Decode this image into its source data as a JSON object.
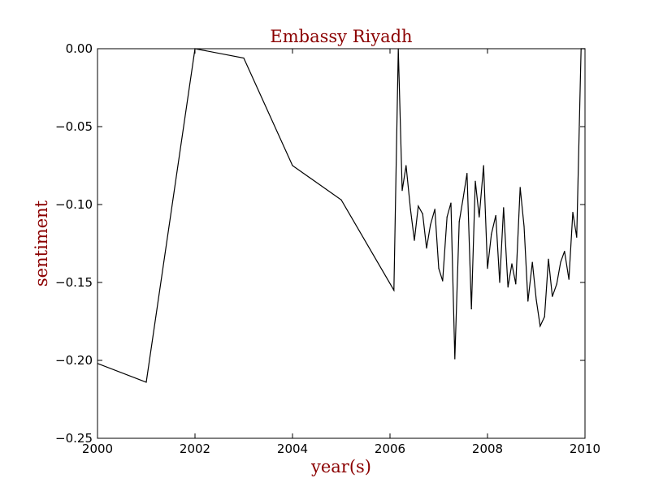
{
  "chart_data": {
    "type": "line",
    "title": "Embassy Riyadh",
    "xlabel": "year(s)",
    "ylabel": "sentiment",
    "xlim": [
      2000,
      2010
    ],
    "ylim": [
      -0.25,
      0.0
    ],
    "grid": false,
    "xticks": [
      2000,
      2002,
      2004,
      2006,
      2008,
      2010
    ],
    "xtick_labels": [
      "2000",
      "2002",
      "2004",
      "2006",
      "2008",
      "2010"
    ],
    "yticks": [
      0.0,
      -0.05,
      -0.1,
      -0.15,
      -0.2,
      -0.25
    ],
    "ytick_labels": [
      "0.00",
      "−0.05",
      "−0.10",
      "−0.15",
      "−0.20",
      "−0.25"
    ],
    "series": [
      {
        "color": "#000000",
        "x": [
          2000.0,
          2001.0,
          2002.0,
          2003.0,
          2004.0,
          2005.0,
          2006.08,
          2006.17,
          2006.25,
          2006.33,
          2006.42,
          2006.5,
          2006.58,
          2006.67,
          2006.75,
          2006.83,
          2006.92,
          2007.0,
          2007.08,
          2007.17,
          2007.25,
          2007.33,
          2007.42,
          2007.5,
          2007.58,
          2007.67,
          2007.75,
          2007.83,
          2007.92,
          2008.0,
          2008.08,
          2008.17,
          2008.25,
          2008.33,
          2008.42,
          2008.5,
          2008.58,
          2008.67,
          2008.75,
          2008.83,
          2008.92,
          2009.0,
          2009.08,
          2009.17,
          2009.25,
          2009.33,
          2009.42,
          2009.5,
          2009.58,
          2009.67,
          2009.75,
          2009.83,
          2009.92,
          2010.0
        ],
        "y": [
          -0.202,
          -0.214,
          0.0,
          -0.006,
          -0.075,
          -0.097,
          -0.155,
          0.0,
          -0.091,
          -0.075,
          -0.103,
          -0.123,
          -0.101,
          -0.106,
          -0.128,
          -0.113,
          -0.103,
          -0.141,
          -0.149,
          -0.108,
          -0.099,
          -0.199,
          -0.111,
          -0.096,
          -0.08,
          -0.167,
          -0.085,
          -0.108,
          -0.075,
          -0.141,
          -0.119,
          -0.107,
          -0.15,
          -0.102,
          -0.153,
          -0.138,
          -0.151,
          -0.089,
          -0.114,
          -0.162,
          -0.137,
          -0.161,
          -0.178,
          -0.172,
          -0.135,
          -0.159,
          -0.151,
          -0.137,
          -0.13,
          -0.148,
          -0.105,
          -0.121,
          0.0,
          0.0
        ]
      }
    ]
  }
}
